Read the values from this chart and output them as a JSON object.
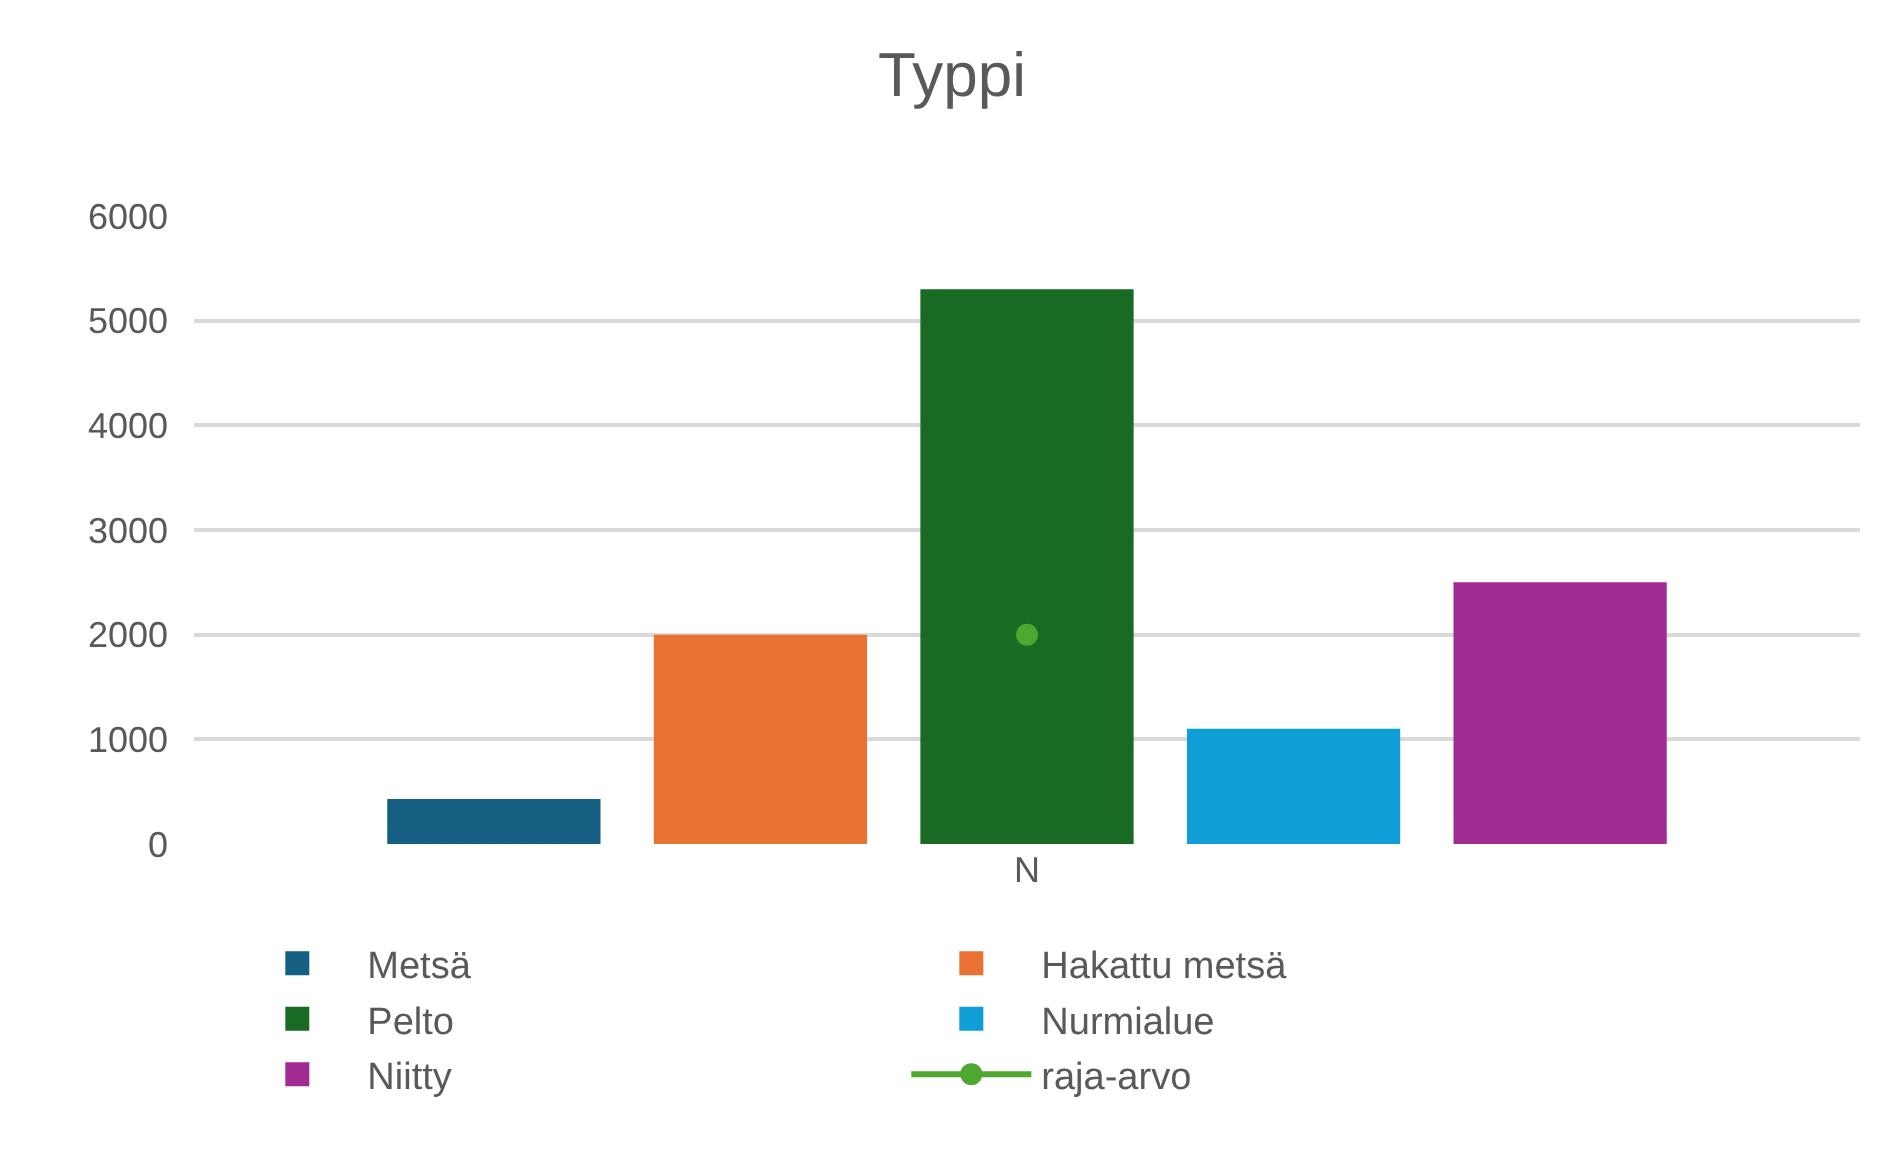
{
  "chart_data": {
    "type": "bar",
    "title": "Typpi",
    "categories": [
      "N"
    ],
    "series": [
      {
        "name": "Metsä",
        "color": "#156082",
        "values": [
          430
        ]
      },
      {
        "name": "Hakattu metsä",
        "color": "#e97132",
        "values": [
          2000
        ]
      },
      {
        "name": "Pelto",
        "color": "#196b24",
        "values": [
          5300
        ]
      },
      {
        "name": "Nurmialue",
        "color": "#0f9ed5",
        "values": [
          1100
        ]
      },
      {
        "name": "Niitty",
        "color": "#a02b93",
        "values": [
          2500
        ]
      },
      {
        "name": "raja-arvo",
        "type": "line",
        "color": "#4ea72e",
        "values": [
          2000
        ],
        "marker": "circle"
      }
    ],
    "ylim": [
      0,
      6000
    ],
    "yticks": [
      0,
      1000,
      2000,
      3000,
      4000,
      5000,
      6000
    ],
    "grid": "y",
    "legend": "bottom"
  }
}
